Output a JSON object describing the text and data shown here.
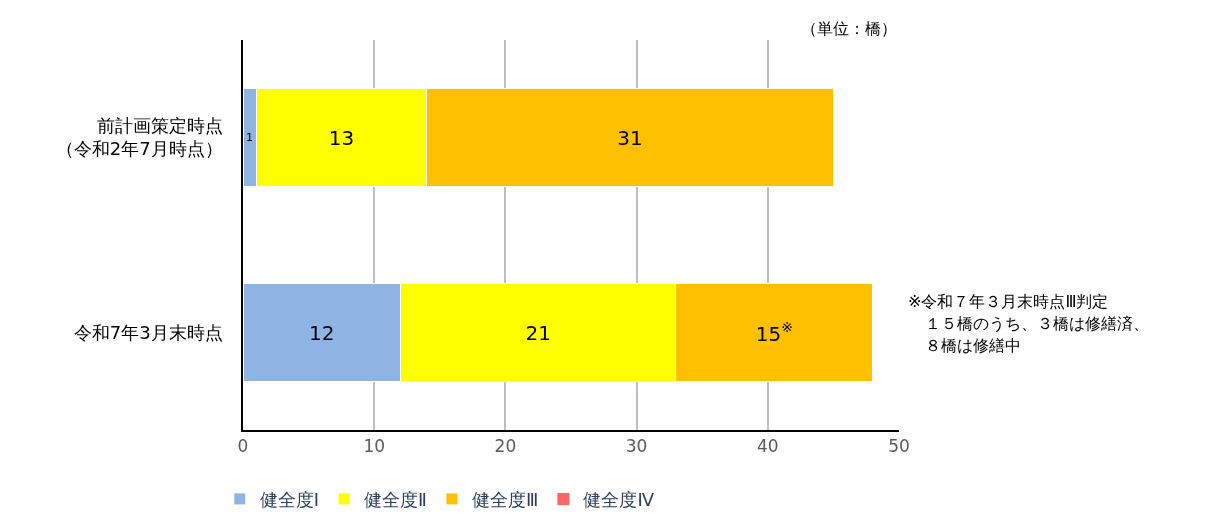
{
  "chart_data": {
    "type": "bar",
    "orientation": "horizontal",
    "stacked": true,
    "categories": [
      "前計画策定時点（令和2年7月時点）",
      "令和7年3月末時点"
    ],
    "series": [
      {
        "name": "健全度Ⅰ",
        "color": "#8db4e2",
        "values": [
          1,
          12
        ],
        "value_labels": [
          "1",
          "12"
        ]
      },
      {
        "name": "健全度Ⅱ",
        "color": "#ffff00",
        "values": [
          13,
          21
        ],
        "value_labels": [
          "13",
          "21"
        ]
      },
      {
        "name": "健全度Ⅲ",
        "color": "#ffc000",
        "values": [
          31,
          15
        ],
        "value_labels": [
          "31",
          "15$^{※}$"
        ]
      },
      {
        "name": "健全度Ⅳ",
        "color": "#ff6666",
        "values": [
          0,
          0
        ],
        "value_labels": [
          null,
          null
        ]
      }
    ],
    "xlim": [
      0,
      50
    ],
    "xticks": [
      0,
      10,
      20,
      30,
      40,
      50
    ],
    "grid": "x",
    "legend": "bottom",
    "annotations": [
      "（単位：橋）",
      "※令和７年３月末時点Ⅲ判定",
      "１５橋のうち、３橋は修繕済、",
      "８橋は修繕中"
    ]
  }
}
